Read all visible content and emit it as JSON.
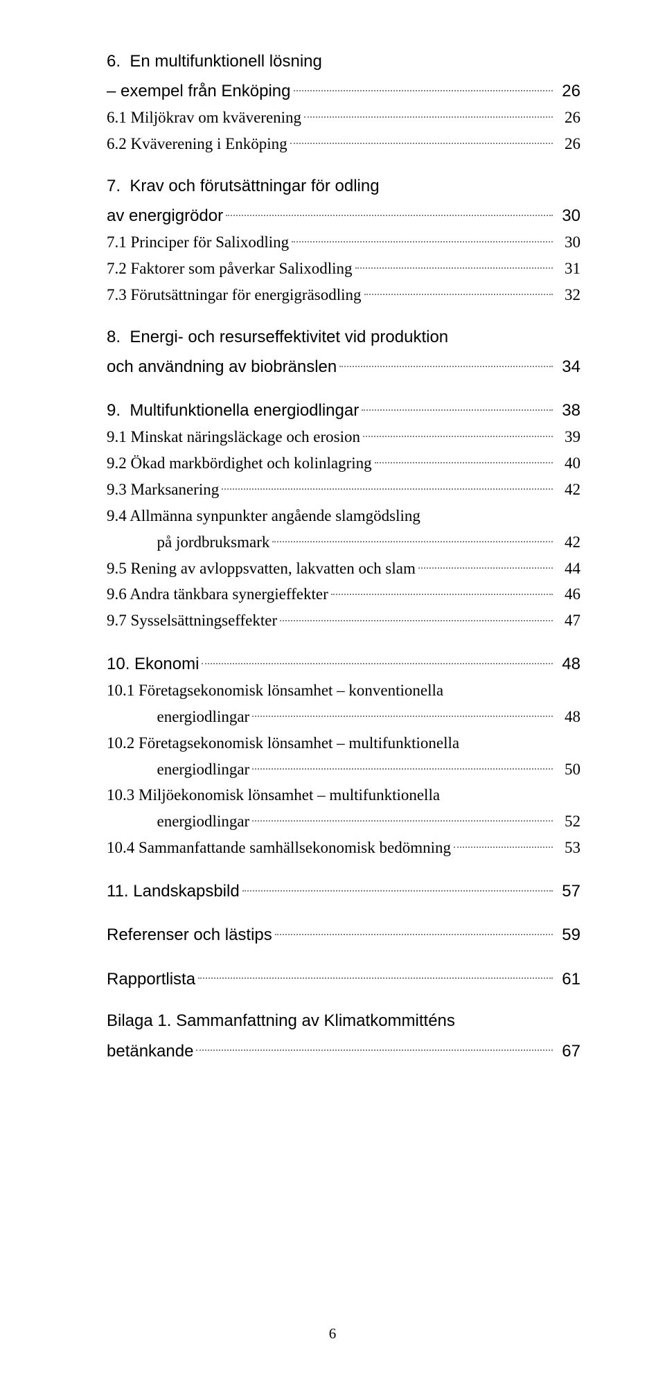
{
  "footer_page_number": "6",
  "colors": {
    "text": "#000000",
    "leader": "#808080",
    "background": "#ffffff"
  },
  "typography": {
    "heading_font": "Arial",
    "body_font": "Times New Roman",
    "heading_size_pt": 18,
    "body_size_pt": 17
  },
  "sections": [
    {
      "heading_lines": [
        "6.  En multifunktionell lösning",
        "– exempel från Enköping"
      ],
      "heading_page": "26",
      "items": [
        {
          "label": "6.1 Miljökrav om kväverening",
          "page": "26"
        },
        {
          "label": "6.2 Kväverening i Enköping",
          "page": "26"
        }
      ]
    },
    {
      "heading_lines": [
        "7.  Krav och förutsättningar för odling",
        "av energigrödor"
      ],
      "heading_page": "30",
      "items": [
        {
          "label": "7.1 Principer för Salixodling",
          "page": "30"
        },
        {
          "label": "7.2 Faktorer som påverkar Salixodling",
          "page": "31"
        },
        {
          "label": "7.3 Förutsättningar för energigräsodling",
          "page": "32"
        }
      ]
    },
    {
      "heading_lines": [
        "8.  Energi- och resurseffektivitet vid produktion",
        "och användning av biobränslen"
      ],
      "heading_page": "34",
      "items": []
    },
    {
      "heading_lines": [
        "9.  Multifunktionella energiodlingar"
      ],
      "heading_page": "38",
      "items": [
        {
          "label": "9.1 Minskat näringsläckage och erosion",
          "page": "39"
        },
        {
          "label": "9.2 Ökad markbördighet och kolinlagring",
          "page": "40"
        },
        {
          "label": "9.3 Marksanering",
          "page": "42"
        },
        {
          "label_lines": [
            "9.4 Allmänna synpunkter angående slamgödsling",
            "på jordbruksmark"
          ],
          "page": "42",
          "indent_cont": true
        },
        {
          "label": "9.5 Rening av avloppsvatten, lakvatten och slam",
          "page": "44"
        },
        {
          "label": "9.6 Andra tänkbara synergieffekter",
          "page": "46"
        },
        {
          "label": "9.7 Sysselsättningseffekter",
          "page": "47"
        }
      ]
    },
    {
      "heading_lines": [
        "10. Ekonomi"
      ],
      "heading_page": "48",
      "items": [
        {
          "label_lines": [
            "10.1 Företagsekonomisk lönsamhet – konventionella",
            "energiodlingar"
          ],
          "page": "48",
          "indent_cont": true
        },
        {
          "label_lines": [
            "10.2 Företagsekonomisk lönsamhet – multifunktionella",
            "energiodlingar"
          ],
          "page": "50",
          "indent_cont": true
        },
        {
          "label_lines": [
            "10.3 Miljöekonomisk lönsamhet – multifunktionella",
            "energiodlingar"
          ],
          "page": "52",
          "indent_cont": true
        },
        {
          "label": "10.4 Sammanfattande samhällsekonomisk bedömning",
          "page": "53"
        }
      ]
    },
    {
      "heading_lines": [
        "11. Landskapsbild"
      ],
      "heading_page": "57",
      "items": []
    },
    {
      "heading_lines": [
        "Referenser och lästips"
      ],
      "heading_page": "59",
      "items": []
    },
    {
      "heading_lines": [
        "Rapportlista"
      ],
      "heading_page": "61",
      "items": []
    }
  ],
  "bottom_block": {
    "lines": [
      "Bilaga 1. Sammanfattning av Klimatkommitténs",
      "betänkande"
    ],
    "page": "67"
  }
}
